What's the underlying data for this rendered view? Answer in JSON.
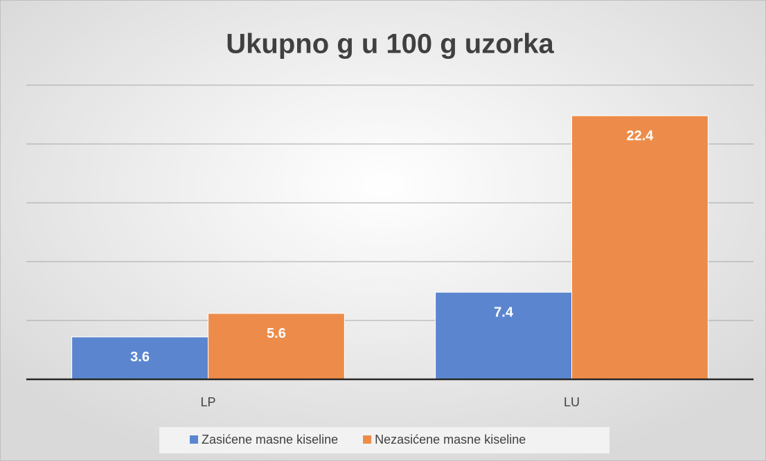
{
  "chart_data": {
    "type": "bar",
    "title": "Ukupno g u 100 g uzorka",
    "categories": [
      "LP",
      "LU"
    ],
    "series": [
      {
        "name": "Zasićene masne kiseline",
        "color": "#5b86cf",
        "values": [
          3.6,
          7.4
        ]
      },
      {
        "name": "Nezasićene masne kiseline",
        "color": "#ed8c4a",
        "values": [
          5.6,
          22.4
        ]
      }
    ],
    "ylim": [
      0,
      25
    ],
    "yticks": [
      0,
      5,
      10,
      15,
      20,
      25
    ],
    "grid": true,
    "legend": "bottom"
  }
}
